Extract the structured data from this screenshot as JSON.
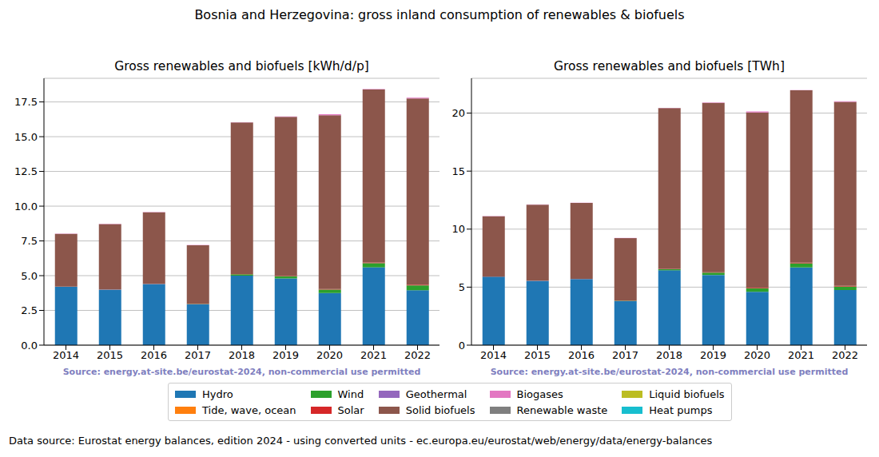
{
  "title": "Bosnia and Herzegovina: gross inland consumption of renewables & biofuels",
  "footnote": "Data source: Eurostat energy balances, edition 2024 - using converted units - ec.europa.eu/eurostat/web/energy/data/energy-balances",
  "chart_data": [
    {
      "type": "bar",
      "title": "Gross renewables and biofuels [kWh/d/p]",
      "annotation": "Source: energy.at-site.be/eurostat-2024, non-commercial use permitted",
      "stacked": true,
      "grid": true,
      "categories": [
        "2014",
        "2015",
        "2016",
        "2017",
        "2018",
        "2019",
        "2020",
        "2021",
        "2022"
      ],
      "ylim": [
        0,
        19.2
      ],
      "yticks": [
        {
          "value": 0,
          "label": "0.0"
        },
        2.5,
        {
          "value": 5,
          "label": "5.0"
        },
        7.5,
        {
          "value": 10,
          "label": "10.0"
        },
        12.5,
        {
          "value": 15,
          "label": "15.0"
        },
        17.5
      ],
      "series": [
        {
          "name": "Hydro",
          "color": "#1f77b4",
          "values": [
            4.2,
            4.0,
            4.4,
            2.95,
            5.0,
            4.8,
            3.75,
            5.6,
            3.95
          ]
        },
        {
          "name": "Tide, wave, ocean",
          "color": "#ff7f0e",
          "values": [
            0,
            0,
            0,
            0,
            0,
            0,
            0,
            0,
            0
          ]
        },
        {
          "name": "Wind",
          "color": "#2ca02c",
          "values": [
            0,
            0,
            0,
            0.02,
            0.1,
            0.15,
            0.25,
            0.3,
            0.35
          ]
        },
        {
          "name": "Solar",
          "color": "#d62728",
          "values": [
            0.01,
            0.01,
            0.01,
            0.02,
            0.02,
            0.03,
            0.04,
            0.05,
            0.05
          ]
        },
        {
          "name": "Geothermal",
          "color": "#9467bd",
          "values": [
            0,
            0,
            0,
            0,
            0,
            0,
            0,
            0,
            0
          ]
        },
        {
          "name": "Solid biofuels",
          "color": "#8c564b",
          "values": [
            3.8,
            4.7,
            5.15,
            4.2,
            10.9,
            11.45,
            12.5,
            12.45,
            13.4
          ]
        },
        {
          "name": "Biogases",
          "color": "#e377c2",
          "values": [
            0.02,
            0.02,
            0.02,
            0.02,
            0.02,
            0.02,
            0.08,
            0.02,
            0.05
          ]
        },
        {
          "name": "Renewable waste",
          "color": "#7f7f7f",
          "values": [
            0,
            0,
            0,
            0,
            0,
            0,
            0,
            0,
            0
          ]
        },
        {
          "name": "Liquid biofuels",
          "color": "#bcbd22",
          "values": [
            0,
            0,
            0,
            0,
            0,
            0,
            0,
            0,
            0
          ]
        },
        {
          "name": "Heat pumps",
          "color": "#17becf",
          "values": [
            0,
            0,
            0,
            0,
            0,
            0,
            0,
            0,
            0
          ]
        }
      ]
    },
    {
      "type": "bar",
      "title": "Gross renewables and biofuels [TWh]",
      "annotation": "Source: energy.at-site.be/eurostat-2024, non-commercial use permitted",
      "stacked": true,
      "grid": true,
      "categories": [
        "2014",
        "2015",
        "2016",
        "2017",
        "2018",
        "2019",
        "2020",
        "2021",
        "2022"
      ],
      "ylim": [
        0,
        23
      ],
      "yticks": [
        0,
        5,
        10,
        15,
        20
      ],
      "series": [
        {
          "name": "Hydro",
          "color": "#1f77b4",
          "values": [
            5.9,
            5.55,
            5.7,
            3.8,
            6.45,
            6.05,
            4.6,
            6.7,
            4.75
          ]
        },
        {
          "name": "Tide, wave, ocean",
          "color": "#ff7f0e",
          "values": [
            0,
            0,
            0,
            0,
            0,
            0,
            0,
            0,
            0
          ]
        },
        {
          "name": "Wind",
          "color": "#2ca02c",
          "values": [
            0,
            0,
            0,
            0.03,
            0.1,
            0.2,
            0.3,
            0.35,
            0.3
          ]
        },
        {
          "name": "Solar",
          "color": "#d62728",
          "values": [
            0.01,
            0.01,
            0.01,
            0.02,
            0.03,
            0.04,
            0.05,
            0.06,
            0.06
          ]
        },
        {
          "name": "Geothermal",
          "color": "#9467bd",
          "values": [
            0,
            0,
            0,
            0,
            0,
            0,
            0,
            0,
            0
          ]
        },
        {
          "name": "Solid biofuels",
          "color": "#8c564b",
          "values": [
            5.2,
            6.55,
            6.55,
            5.37,
            13.85,
            14.6,
            15.1,
            14.85,
            15.85
          ]
        },
        {
          "name": "Biogases",
          "color": "#e377c2",
          "values": [
            0.02,
            0.02,
            0.02,
            0.02,
            0.03,
            0.03,
            0.1,
            0.03,
            0.06
          ]
        },
        {
          "name": "Renewable waste",
          "color": "#7f7f7f",
          "values": [
            0,
            0,
            0,
            0,
            0,
            0,
            0,
            0,
            0
          ]
        },
        {
          "name": "Liquid biofuels",
          "color": "#bcbd22",
          "values": [
            0,
            0,
            0,
            0,
            0,
            0,
            0,
            0,
            0
          ]
        },
        {
          "name": "Heat pumps",
          "color": "#17becf",
          "values": [
            0,
            0,
            0,
            0,
            0,
            0,
            0,
            0,
            0
          ]
        }
      ]
    }
  ]
}
